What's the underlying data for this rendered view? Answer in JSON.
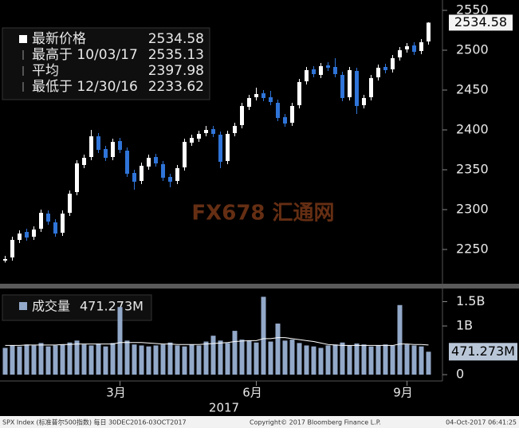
{
  "chart_data": [
    {
      "type": "candlestick",
      "categories": [
        null,
        null,
        null,
        null,
        null,
        null,
        null,
        null,
        null,
        null,
        null,
        null,
        null,
        null,
        null,
        null,
        "3月",
        null,
        null,
        null,
        null,
        null,
        null,
        null,
        null,
        null,
        null,
        null,
        null,
        null,
        null,
        null,
        null,
        null,
        null,
        "6月",
        null,
        null,
        null,
        null,
        null,
        null,
        null,
        null,
        null,
        null,
        null,
        null,
        null,
        null,
        null,
        null,
        null,
        null,
        null,
        null,
        "9月",
        null,
        null,
        null
      ],
      "open": [
        2236,
        2240,
        2262,
        2272,
        2266,
        2276,
        2295,
        2284,
        2271,
        2296,
        2322,
        2356,
        2366,
        2392,
        2376,
        2366,
        2386,
        2374,
        2346,
        2336,
        2354,
        2366,
        2357,
        2341,
        2336,
        2353,
        2384,
        2389,
        2396,
        2401,
        2394,
        2361,
        2396,
        2406,
        2429,
        2441,
        2446,
        2441,
        2434,
        2416,
        2409,
        2431,
        2461,
        2476,
        2469,
        2481,
        2479,
        2469,
        2441,
        2474,
        2431,
        2441,
        2466,
        2479,
        2476,
        2491,
        2501,
        2506,
        2499,
        2511
      ],
      "high": [
        2242,
        2266,
        2274,
        2276,
        2279,
        2300,
        2299,
        2288,
        2299,
        2324,
        2362,
        2369,
        2400,
        2396,
        2380,
        2389,
        2390,
        2378,
        2350,
        2359,
        2369,
        2370,
        2361,
        2345,
        2356,
        2389,
        2394,
        2399,
        2405,
        2405,
        2398,
        2399,
        2409,
        2434,
        2444,
        2453,
        2450,
        2449,
        2438,
        2420,
        2434,
        2464,
        2479,
        2480,
        2484,
        2485,
        2490,
        2473,
        2479,
        2478,
        2444,
        2469,
        2482,
        2483,
        2494,
        2504,
        2509,
        2510,
        2514,
        2535.13
      ],
      "low": [
        2233.62,
        2236,
        2258,
        2261,
        2262,
        2272,
        2281,
        2266,
        2267,
        2292,
        2318,
        2352,
        2362,
        2371,
        2361,
        2362,
        2371,
        2341,
        2325,
        2332,
        2350,
        2354,
        2336,
        2328,
        2332,
        2349,
        2380,
        2385,
        2392,
        2391,
        2352,
        2357,
        2392,
        2402,
        2425,
        2437,
        2436,
        2431,
        2411,
        2404,
        2405,
        2427,
        2457,
        2466,
        2465,
        2474,
        2466,
        2436,
        2437,
        2420,
        2427,
        2437,
        2462,
        2471,
        2472,
        2487,
        2497,
        2494,
        2495,
        2507
      ],
      "close": [
        2238,
        2262,
        2270,
        2265,
        2275,
        2296,
        2285,
        2270,
        2295,
        2320,
        2358,
        2365,
        2392,
        2375,
        2365,
        2385,
        2375,
        2345,
        2335,
        2355,
        2365,
        2358,
        2340,
        2335,
        2352,
        2385,
        2390,
        2395,
        2400,
        2395,
        2360,
        2395,
        2405,
        2430,
        2440,
        2445,
        2440,
        2435,
        2415,
        2408,
        2430,
        2460,
        2475,
        2470,
        2480,
        2478,
        2470,
        2440,
        2475,
        2430,
        2440,
        2465,
        2478,
        2475,
        2490,
        2500,
        2505,
        2498,
        2510,
        2534.58
      ],
      "up_color": "#ffffff",
      "down_color": "#2f74d8",
      "ylim": [
        2207,
        2563
      ],
      "yticks": [
        2250,
        2300,
        2350,
        2400,
        2450,
        2500,
        2550
      ],
      "year_label": "2017",
      "last_price_tag": 2534.58,
      "legend": [
        {
          "label": "最新价格",
          "value": 2534.58
        },
        {
          "label": "最高于 10/03/17",
          "value": 2535.13
        },
        {
          "label": "平均",
          "value": 2397.98
        },
        {
          "label": "最低于 12/30/16",
          "value": 2233.62
        }
      ]
    },
    {
      "type": "bar",
      "legend_label": "成交量",
      "values": [
        0.55,
        0.6,
        0.58,
        0.62,
        0.6,
        0.65,
        0.58,
        0.6,
        0.62,
        0.66,
        0.7,
        0.62,
        0.6,
        0.64,
        0.58,
        0.65,
        1.39,
        0.7,
        0.62,
        0.6,
        0.58,
        0.6,
        0.62,
        0.66,
        0.6,
        0.58,
        0.62,
        0.6,
        0.68,
        0.8,
        0.7,
        0.65,
        0.9,
        0.72,
        0.7,
        0.66,
        1.6,
        0.68,
        1.05,
        0.7,
        0.72,
        0.65,
        0.6,
        0.58,
        0.55,
        0.6,
        0.62,
        0.66,
        0.6,
        0.64,
        0.62,
        0.58,
        0.6,
        0.62,
        0.6,
        1.43,
        0.62,
        0.6,
        0.58,
        0.471273
      ],
      "average": [
        0.6,
        0.6,
        0.6,
        0.61,
        0.61,
        0.61,
        0.61,
        0.61,
        0.62,
        0.62,
        0.63,
        0.63,
        0.63,
        0.63,
        0.63,
        0.63,
        0.66,
        0.66,
        0.66,
        0.66,
        0.65,
        0.64,
        0.63,
        0.63,
        0.62,
        0.62,
        0.62,
        0.62,
        0.63,
        0.64,
        0.65,
        0.66,
        0.68,
        0.69,
        0.7,
        0.7,
        0.74,
        0.74,
        0.76,
        0.76,
        0.74,
        0.72,
        0.7,
        0.68,
        0.65,
        0.62,
        0.61,
        0.6,
        0.6,
        0.6,
        0.6,
        0.6,
        0.6,
        0.6,
        0.6,
        0.63,
        0.63,
        0.62,
        0.62,
        0.61
      ],
      "color": "#93a9c9",
      "average_color": "#ffffff",
      "last_value": {
        "value": 0.471273,
        "label": "471.273M"
      },
      "ylim": [
        -0.13,
        1.77
      ],
      "yticks": [
        {
          "value": 1.5,
          "label": "1.5B"
        },
        {
          "value": 1,
          "label": "1B"
        },
        0
      ]
    }
  ],
  "watermark": "FX678 汇通网",
  "footer": {
    "source": "SPX Index (标准普尔500指数)  每日 30DEC2016-03OCT2017",
    "copyright": "Copyright© 2017 Bloomberg Finance L.P.",
    "timestamp": "04-Oct-2017 06:41:25"
  }
}
